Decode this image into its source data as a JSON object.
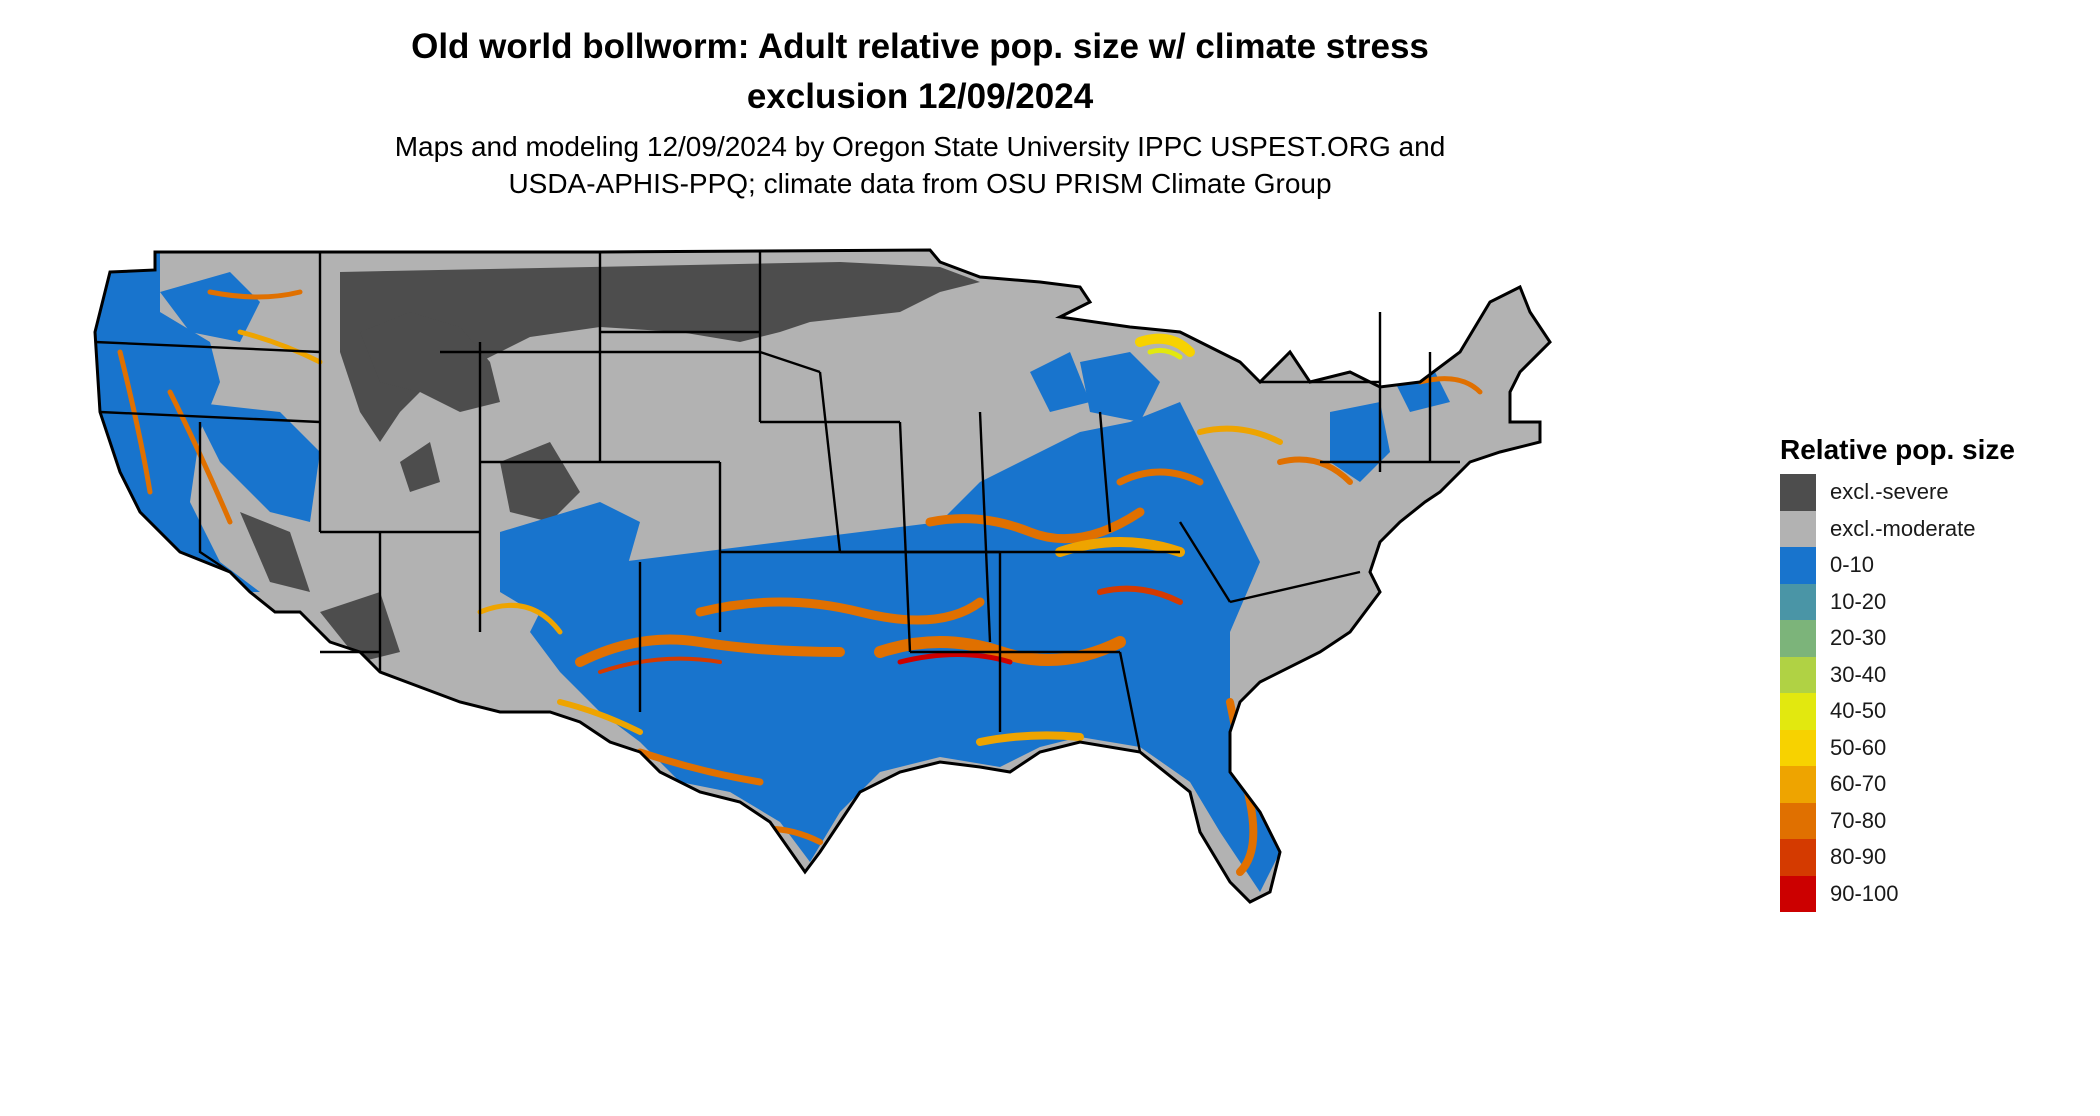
{
  "title": {
    "line1": "Old world bollworm: Adult relative pop. size w/ climate stress",
    "line2": "exclusion 12/09/2024"
  },
  "subtitle": {
    "line1": "Maps and modeling 12/09/2024 by Oregon State University IPPC USPEST.ORG and",
    "line2": "USDA-APHIS-PPQ; climate data from OSU PRISM Climate Group"
  },
  "legend": {
    "title": "Relative pop. size",
    "items": [
      {
        "label": "excl.-severe",
        "color": "#4d4d4d"
      },
      {
        "label": "excl.-moderate",
        "color": "#b2b2b2"
      },
      {
        "label": "0-10",
        "color": "#1874cd"
      },
      {
        "label": "10-20",
        "color": "#4a95a6"
      },
      {
        "label": "20-30",
        "color": "#7cb47a"
      },
      {
        "label": "30-40",
        "color": "#b0d244"
      },
      {
        "label": "40-50",
        "color": "#e2e80f"
      },
      {
        "label": "50-60",
        "color": "#f7d200"
      },
      {
        "label": "60-70",
        "color": "#eea400"
      },
      {
        "label": "70-80",
        "color": "#e07000"
      },
      {
        "label": "80-90",
        "color": "#d43a00"
      },
      {
        "label": "90-100",
        "color": "#cc0000"
      }
    ]
  }
}
